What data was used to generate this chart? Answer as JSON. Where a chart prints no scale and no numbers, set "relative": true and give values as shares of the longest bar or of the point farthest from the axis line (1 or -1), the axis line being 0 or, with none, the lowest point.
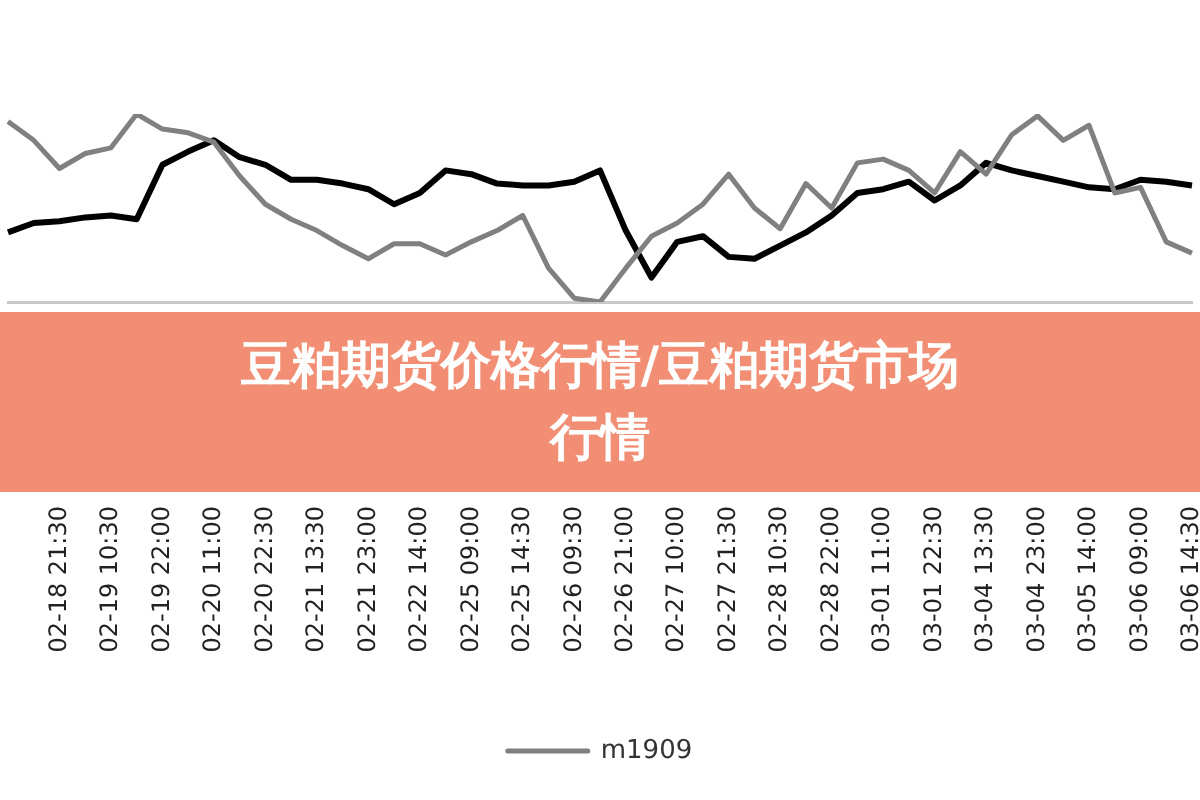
{
  "chart_data": {
    "type": "line",
    "title": "豆粕期货价格行情/豆粕期货市场行情",
    "relative": true,
    "legend": "bottom",
    "marker": "none",
    "line_style": "solid",
    "categories": [
      null,
      null,
      "02-18 21:30",
      null,
      "02-19 10:30",
      null,
      "02-19 22:00",
      null,
      "02-20 11:00",
      null,
      "02-20 22:30",
      null,
      "02-21 13:30",
      null,
      "02-21 23:00",
      null,
      "02-22 14:00",
      null,
      "02-25 09:00",
      null,
      "02-25 14:30",
      null,
      "02-26 09:30",
      null,
      "02-26 21:00",
      null,
      "02-27 10:00",
      null,
      "02-27 21:30",
      null,
      "02-28 10:30",
      null,
      "02-28 22:00",
      null,
      "03-01 11:00",
      null,
      "03-01 22:30",
      null,
      "03-04 13:30",
      null,
      "03-04 23:00",
      null,
      "03-05 14:00",
      null,
      "03-06 09:00",
      null,
      "03-06 14:30"
    ],
    "series": [
      {
        "name": "m1909",
        "color": "#808080",
        "values": [
          0.96,
          0.86,
          0.71,
          0.79,
          0.82,
          1,
          0.92,
          0.9,
          0.85,
          0.67,
          0.52,
          0.44,
          0.38,
          0.3,
          0.23,
          0.31,
          0.31,
          0.25,
          0.32,
          0.38,
          0.46,
          0.18,
          0.02,
          0,
          0.18,
          0.35,
          0.42,
          0.52,
          0.68,
          0.5,
          0.39,
          0.63,
          0.5,
          0.74,
          0.76,
          0.7,
          0.58,
          0.8,
          0.68,
          0.89,
          0.99,
          0.86,
          0.94,
          0.58,
          0.61,
          0.32,
          0.26
        ]
      },
      {
        "color": "#000000",
        "values": [
          0.37,
          0.42,
          0.43,
          0.45,
          0.46,
          0.44,
          0.73,
          0.8,
          0.86,
          0.77,
          0.73,
          0.65,
          0.65,
          0.63,
          0.6,
          0.52,
          0.58,
          0.7,
          0.68,
          0.63,
          0.62,
          0.62,
          0.64,
          0.7,
          0.38,
          0.13,
          0.32,
          0.35,
          0.24,
          0.23,
          0.3,
          0.37,
          0.46,
          0.58,
          0.6,
          0.64,
          0.54,
          0.62,
          0.74,
          0.7,
          0.67,
          0.64,
          0.61,
          0.6,
          0.65,
          0.64,
          0.62
        ]
      }
    ]
  }
}
